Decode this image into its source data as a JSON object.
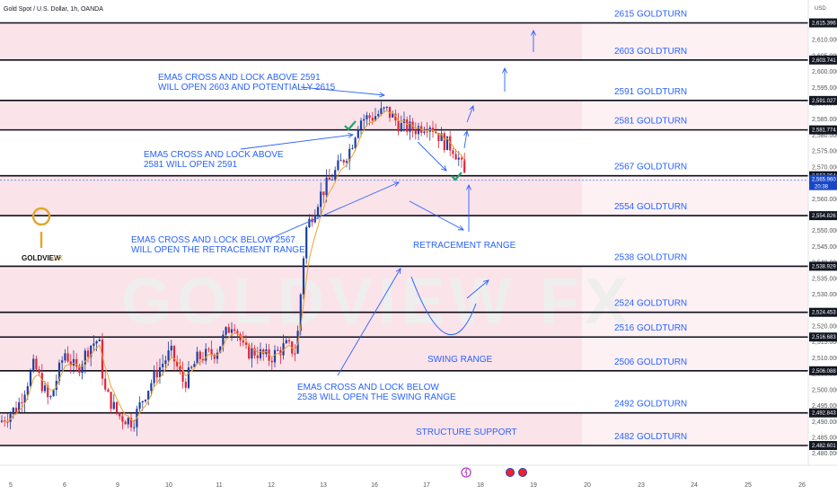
{
  "header": {
    "title": "Gold Spot / U.S. Dollar, 1h, OANDA",
    "currency": "USD"
  },
  "logo": {
    "text": "GOLDVIEW",
    "suffix": "FX",
    "watermark": "GOLDVIEW FX"
  },
  "colors": {
    "up": "#1e3f9c",
    "down": "#e0243c",
    "zone": "#fbe3ea",
    "annotation": "#2962ff",
    "ema": "#f0a030",
    "check": "#22a36a"
  },
  "chart_data": {
    "type": "candlestick",
    "title": "Gold Spot / U.S. Dollar, 1h, OANDA",
    "ylim": [
      2472.0,
      2620.0
    ],
    "x_ticks": [
      "5",
      "6",
      "9",
      "10",
      "11",
      "12",
      "13",
      "16",
      "17",
      "18",
      "19",
      "20",
      "23",
      "24",
      "25",
      "26"
    ],
    "y_ticks": [
      "2,475.000",
      "2,480.000",
      "2,485.000",
      "2,490.000",
      "2,495.000",
      "2,500.000",
      "2,505.000",
      "2,510.000",
      "2,515.000",
      "2,520.000",
      "2,525.000",
      "2,530.000",
      "2,535.000",
      "2,540.000",
      "2,545.000",
      "2,550.000",
      "2,555.000",
      "2,560.000",
      "2,565.000",
      "2,570.000",
      "2,575.000",
      "2,580.000",
      "2,585.000",
      "2,590.000",
      "2,595.000",
      "2,600.000",
      "2,605.000",
      "2,610.000"
    ],
    "levels": [
      {
        "value": 2615.396,
        "label": "2615 GOLDTURN",
        "price_label": "2,615.396"
      },
      {
        "value": 2603.741,
        "label": "2603 GOLDTURN",
        "price_label": "2,603.741"
      },
      {
        "value": 2591.027,
        "label": "2591 GOLDTURN",
        "price_label": "2,591.027"
      },
      {
        "value": 2581.774,
        "label": "2581 GOLDTURN",
        "price_label": "2,581.774"
      },
      {
        "value": 2567.364,
        "label": "2567 GOLDTURN",
        "price_label": "2,567.364"
      },
      {
        "value": 2554.826,
        "label": "2554 GOLDTURN",
        "price_label": "2,554.826"
      },
      {
        "value": 2538.929,
        "label": "2538 GOLDTURN",
        "price_label": "2,538.929"
      },
      {
        "value": 2524.453,
        "label": "2524 GOLDTURN",
        "price_label": "2,524.453"
      },
      {
        "value": 2516.683,
        "label": "2516 GOLDTURN",
        "price_label": "2,516.683"
      },
      {
        "value": 2506.088,
        "label": "2506 GOLDTURN",
        "price_label": "2,506.088"
      },
      {
        "value": 2492.843,
        "label": "2492 GOLDTURN",
        "price_label": "2,492.843"
      },
      {
        "value": 2482.601,
        "label": "2482 GOLDTURN",
        "price_label": "2,482.601"
      }
    ],
    "zones": [
      [
        2603.741,
        2615.396
      ],
      [
        2581.774,
        2591.027
      ],
      [
        2554.826,
        2567.364
      ],
      [
        2506.088,
        2538.929
      ],
      [
        2482.601,
        2492.843
      ]
    ],
    "current_price": {
      "value": 2565.96,
      "label": "2,565.960",
      "countdown": "20:38"
    },
    "annotations": [
      {
        "lines": [
          "EMA5 CROSS AND LOCK ABOVE 2591",
          "WILL OPEN 2603 AND POTENTIALLY 2615"
        ]
      },
      {
        "lines": [
          "EMA5 CROSS AND LOCK ABOVE",
          "2581 WILL OPEN 2591"
        ]
      },
      {
        "lines": [
          "EMA5 CROSS AND LOCK BELOW 2567",
          "WILL OPEN THE RETRACEMENT RANGE"
        ]
      },
      {
        "lines": [
          "EMA5 CROSS AND LOCK BELOW",
          "2538 WILL OPEN THE SWING RANGE"
        ]
      },
      {
        "lines": [
          "RETRACEMENT RANGE"
        ]
      },
      {
        "lines": [
          "SWING RANGE"
        ]
      },
      {
        "lines": [
          "STRUCTURE SUPPORT"
        ]
      }
    ],
    "series_description": "XAUUSD hourly candles with EMA5 overlay"
  }
}
